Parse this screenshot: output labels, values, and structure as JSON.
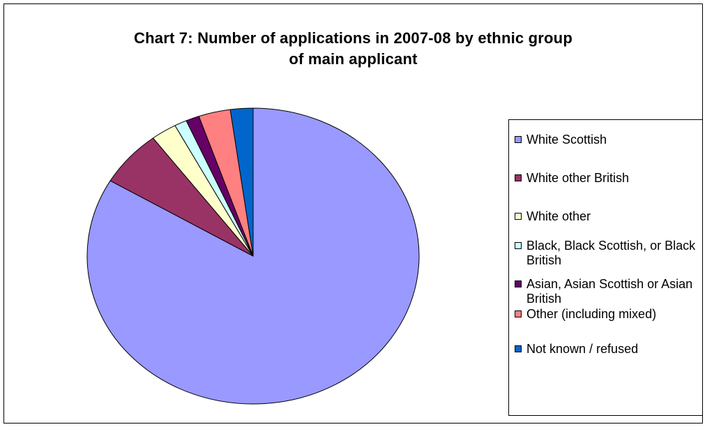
{
  "chart_data": {
    "type": "pie",
    "title": "Chart 7:   Number of applications in 2007-08 by ethnic group\nof main applicant",
    "legend_position": "right",
    "categories": [
      "White Scottish",
      "White other British",
      "White other",
      "Black, Black Scottish, or Black British",
      "Asian, Asian Scottish or Asian British",
      "Other (including mixed)",
      "Not known / refused"
    ],
    "values": [
      83.5,
      6.2,
      2.5,
      1.2,
      1.3,
      3.1,
      2.2
    ],
    "colors": [
      "#9999FF",
      "#993366",
      "#FFFFCC",
      "#CCFFFF",
      "#660066",
      "#FF8080",
      "#0066CC"
    ]
  }
}
